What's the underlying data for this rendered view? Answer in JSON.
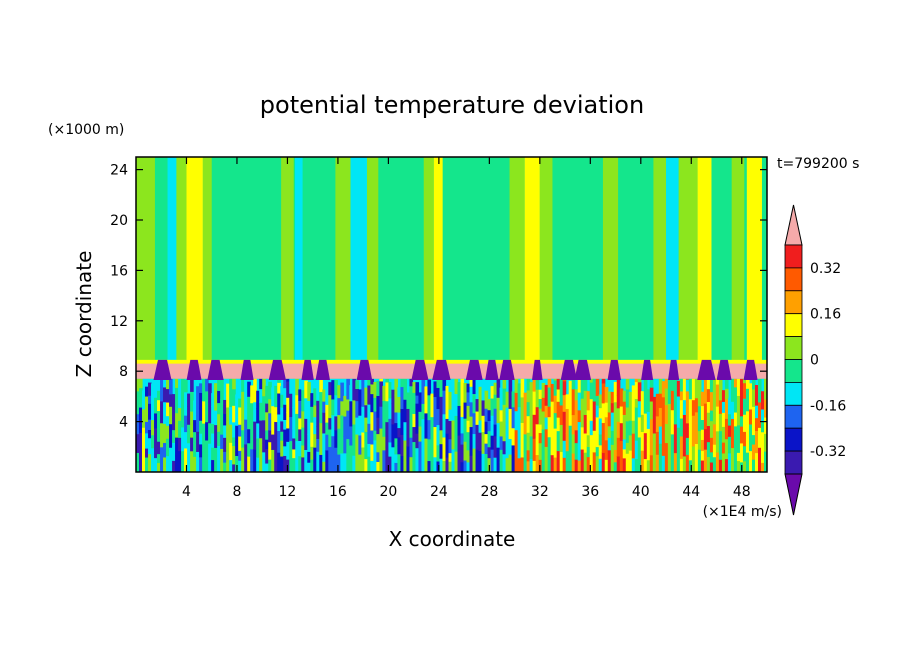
{
  "chart_data": {
    "type": "heatmap",
    "title": "potential temperature deviation",
    "xlabel": "X coordinate",
    "ylabel": "Z coordinate",
    "x_unit": "(×1E4 m/s)",
    "y_unit": "(×1000 m)",
    "time_label": "t=799200 s",
    "xlim": [
      0,
      50
    ],
    "ylim": [
      0,
      25
    ],
    "x_ticks": [
      4,
      8,
      12,
      16,
      20,
      24,
      28,
      32,
      36,
      40,
      44,
      48
    ],
    "y_ticks": [
      4,
      8,
      12,
      16,
      20,
      24
    ],
    "colorbar": {
      "levels": [
        -0.4,
        -0.32,
        -0.24,
        -0.16,
        -0.08,
        0,
        0.08,
        0.16,
        0.24,
        0.32,
        0.4
      ],
      "colors": [
        "#6a0aab",
        "#3a1ab0",
        "#0a14c8",
        "#1e64f0",
        "#00e6f5",
        "#14e68c",
        "#8ce61e",
        "#ffff00",
        "#ffa000",
        "#ff5a00",
        "#f01e1e",
        "#f5aaaa"
      ],
      "tick_labels": [
        "0.32",
        "0.16",
        "0",
        "-0.16",
        "-0.32"
      ],
      "tick_values": [
        0.32,
        0.16,
        0,
        -0.16,
        -0.32
      ]
    },
    "description_bands": [
      {
        "z_range": [
          7.5,
          8.8
        ],
        "value": "> 0.4"
      }
    ]
  }
}
